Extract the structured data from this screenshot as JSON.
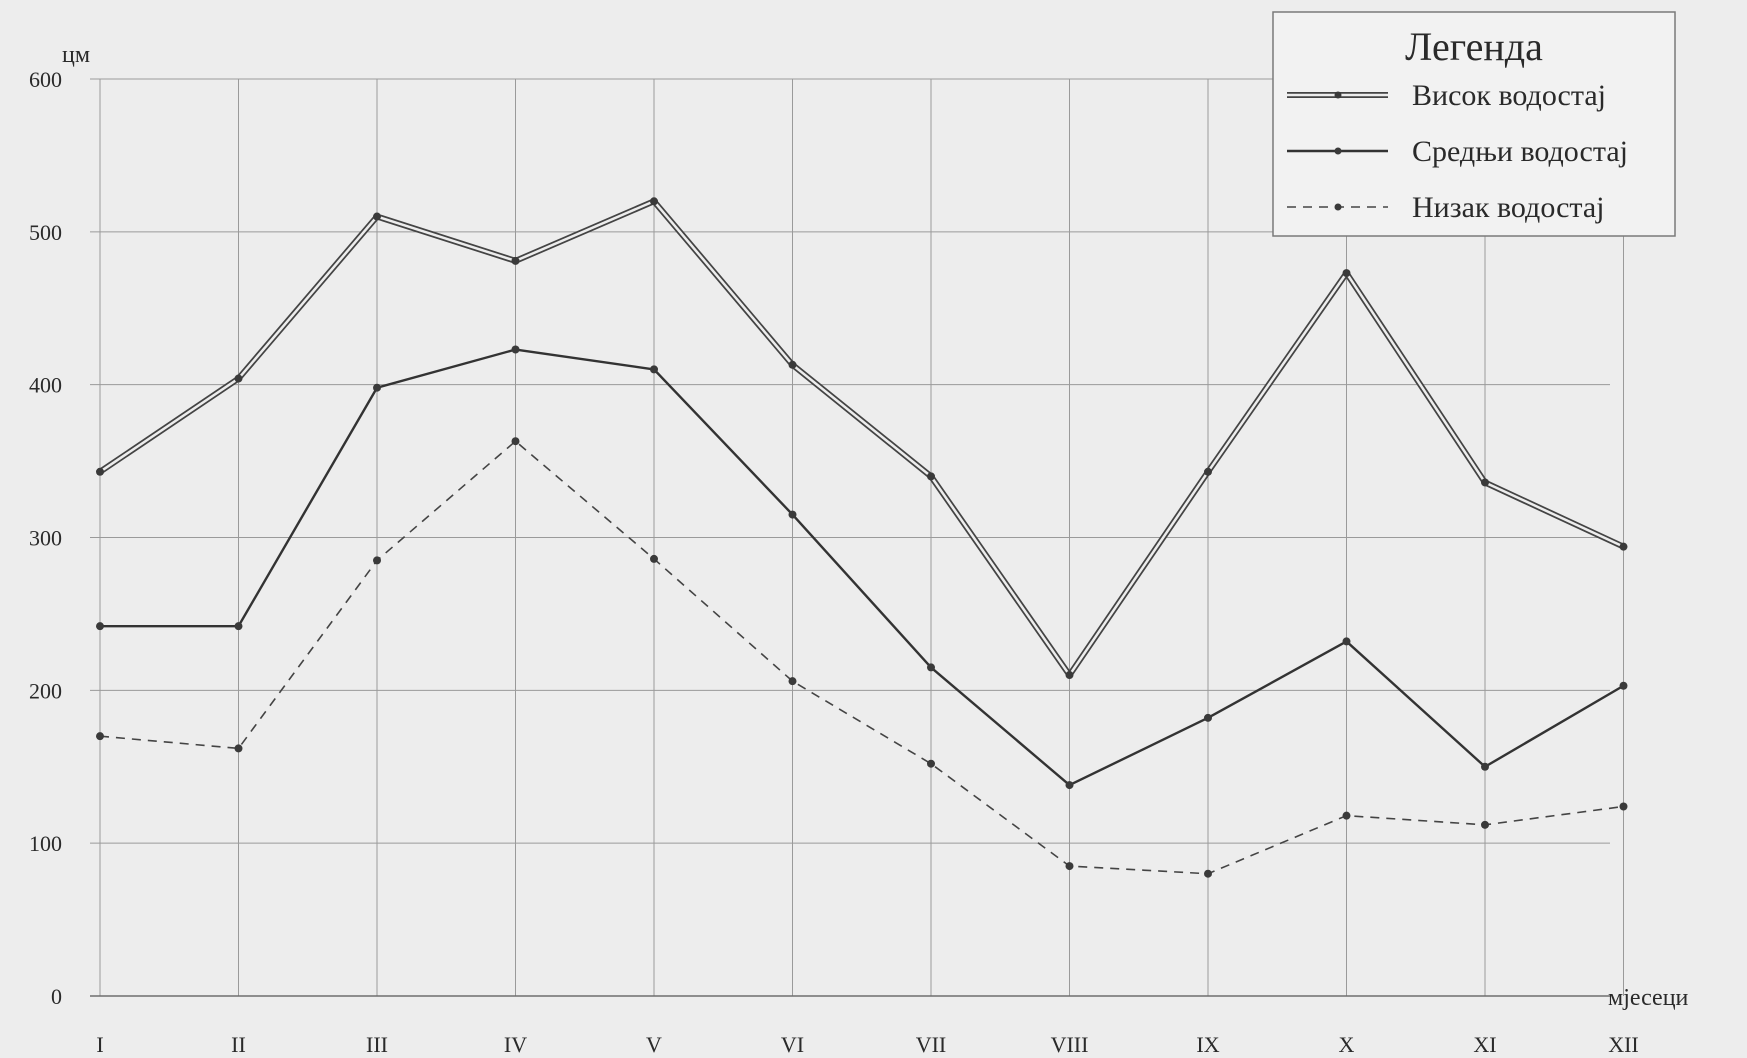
{
  "chart_data": {
    "type": "line",
    "ylabel": "цм",
    "xlabel": "мјесеци",
    "ylim": [
      0,
      600
    ],
    "yticks": [
      0,
      100,
      200,
      300,
      400,
      500,
      600
    ],
    "categories": [
      "I",
      "II",
      "III",
      "IV",
      "V",
      "VI",
      "VII",
      "VIII",
      "IX",
      "X",
      "XI",
      "XII"
    ],
    "grid": true,
    "legend_title": "Легенда",
    "legend_position": "top-right",
    "series": [
      {
        "name": "Висок водостај",
        "style": "double",
        "color": "#444444",
        "values": [
          343,
          404,
          510,
          481,
          520,
          413,
          340,
          210,
          343,
          473,
          336,
          294
        ]
      },
      {
        "name": "Средњи водостај",
        "style": "solid",
        "color": "#333333",
        "values": [
          242,
          242,
          398,
          423,
          410,
          315,
          215,
          138,
          182,
          232,
          150,
          203
        ]
      },
      {
        "name": "Низак водостај",
        "style": "dashed",
        "color": "#444444",
        "values": [
          170,
          162,
          285,
          363,
          286,
          206,
          152,
          85,
          80,
          118,
          112,
          124
        ]
      }
    ]
  }
}
